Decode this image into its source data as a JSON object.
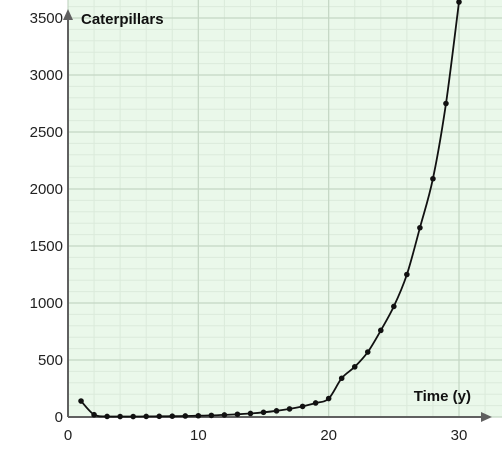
{
  "chart_data": {
    "type": "line",
    "title": "",
    "xlabel": "Time (y)",
    "ylabel": "Caterpillars",
    "xlim": [
      0,
      30
    ],
    "ylim": [
      0,
      3500
    ],
    "x_ticks": [
      "0",
      "10",
      "20",
      "30"
    ],
    "y_ticks": [
      "0",
      "500",
      "1000",
      "1500",
      "2000",
      "2500",
      "3000",
      "3500"
    ],
    "grid": true,
    "series": [
      {
        "x": [
          1,
          2,
          3,
          4,
          5,
          6,
          7,
          8,
          9,
          10,
          11,
          12,
          13,
          14,
          15,
          16,
          17,
          18,
          19,
          20,
          21,
          22,
          23,
          24,
          25,
          26,
          27,
          28,
          29,
          30
        ],
        "y": [
          140,
          20,
          5,
          4,
          4,
          5,
          6,
          7,
          9,
          11,
          14,
          18,
          24,
          31,
          41,
          54,
          71,
          93,
          123,
          162,
          340,
          440,
          570,
          760,
          970,
          1250,
          1660,
          2090,
          2750,
          3640
        ]
      }
    ]
  },
  "colors": {
    "background": "#eaf8ea",
    "grid_major": "#c4d6c4",
    "grid_minor": "#dbeadb",
    "axis": "#606060",
    "line": "#111111"
  }
}
